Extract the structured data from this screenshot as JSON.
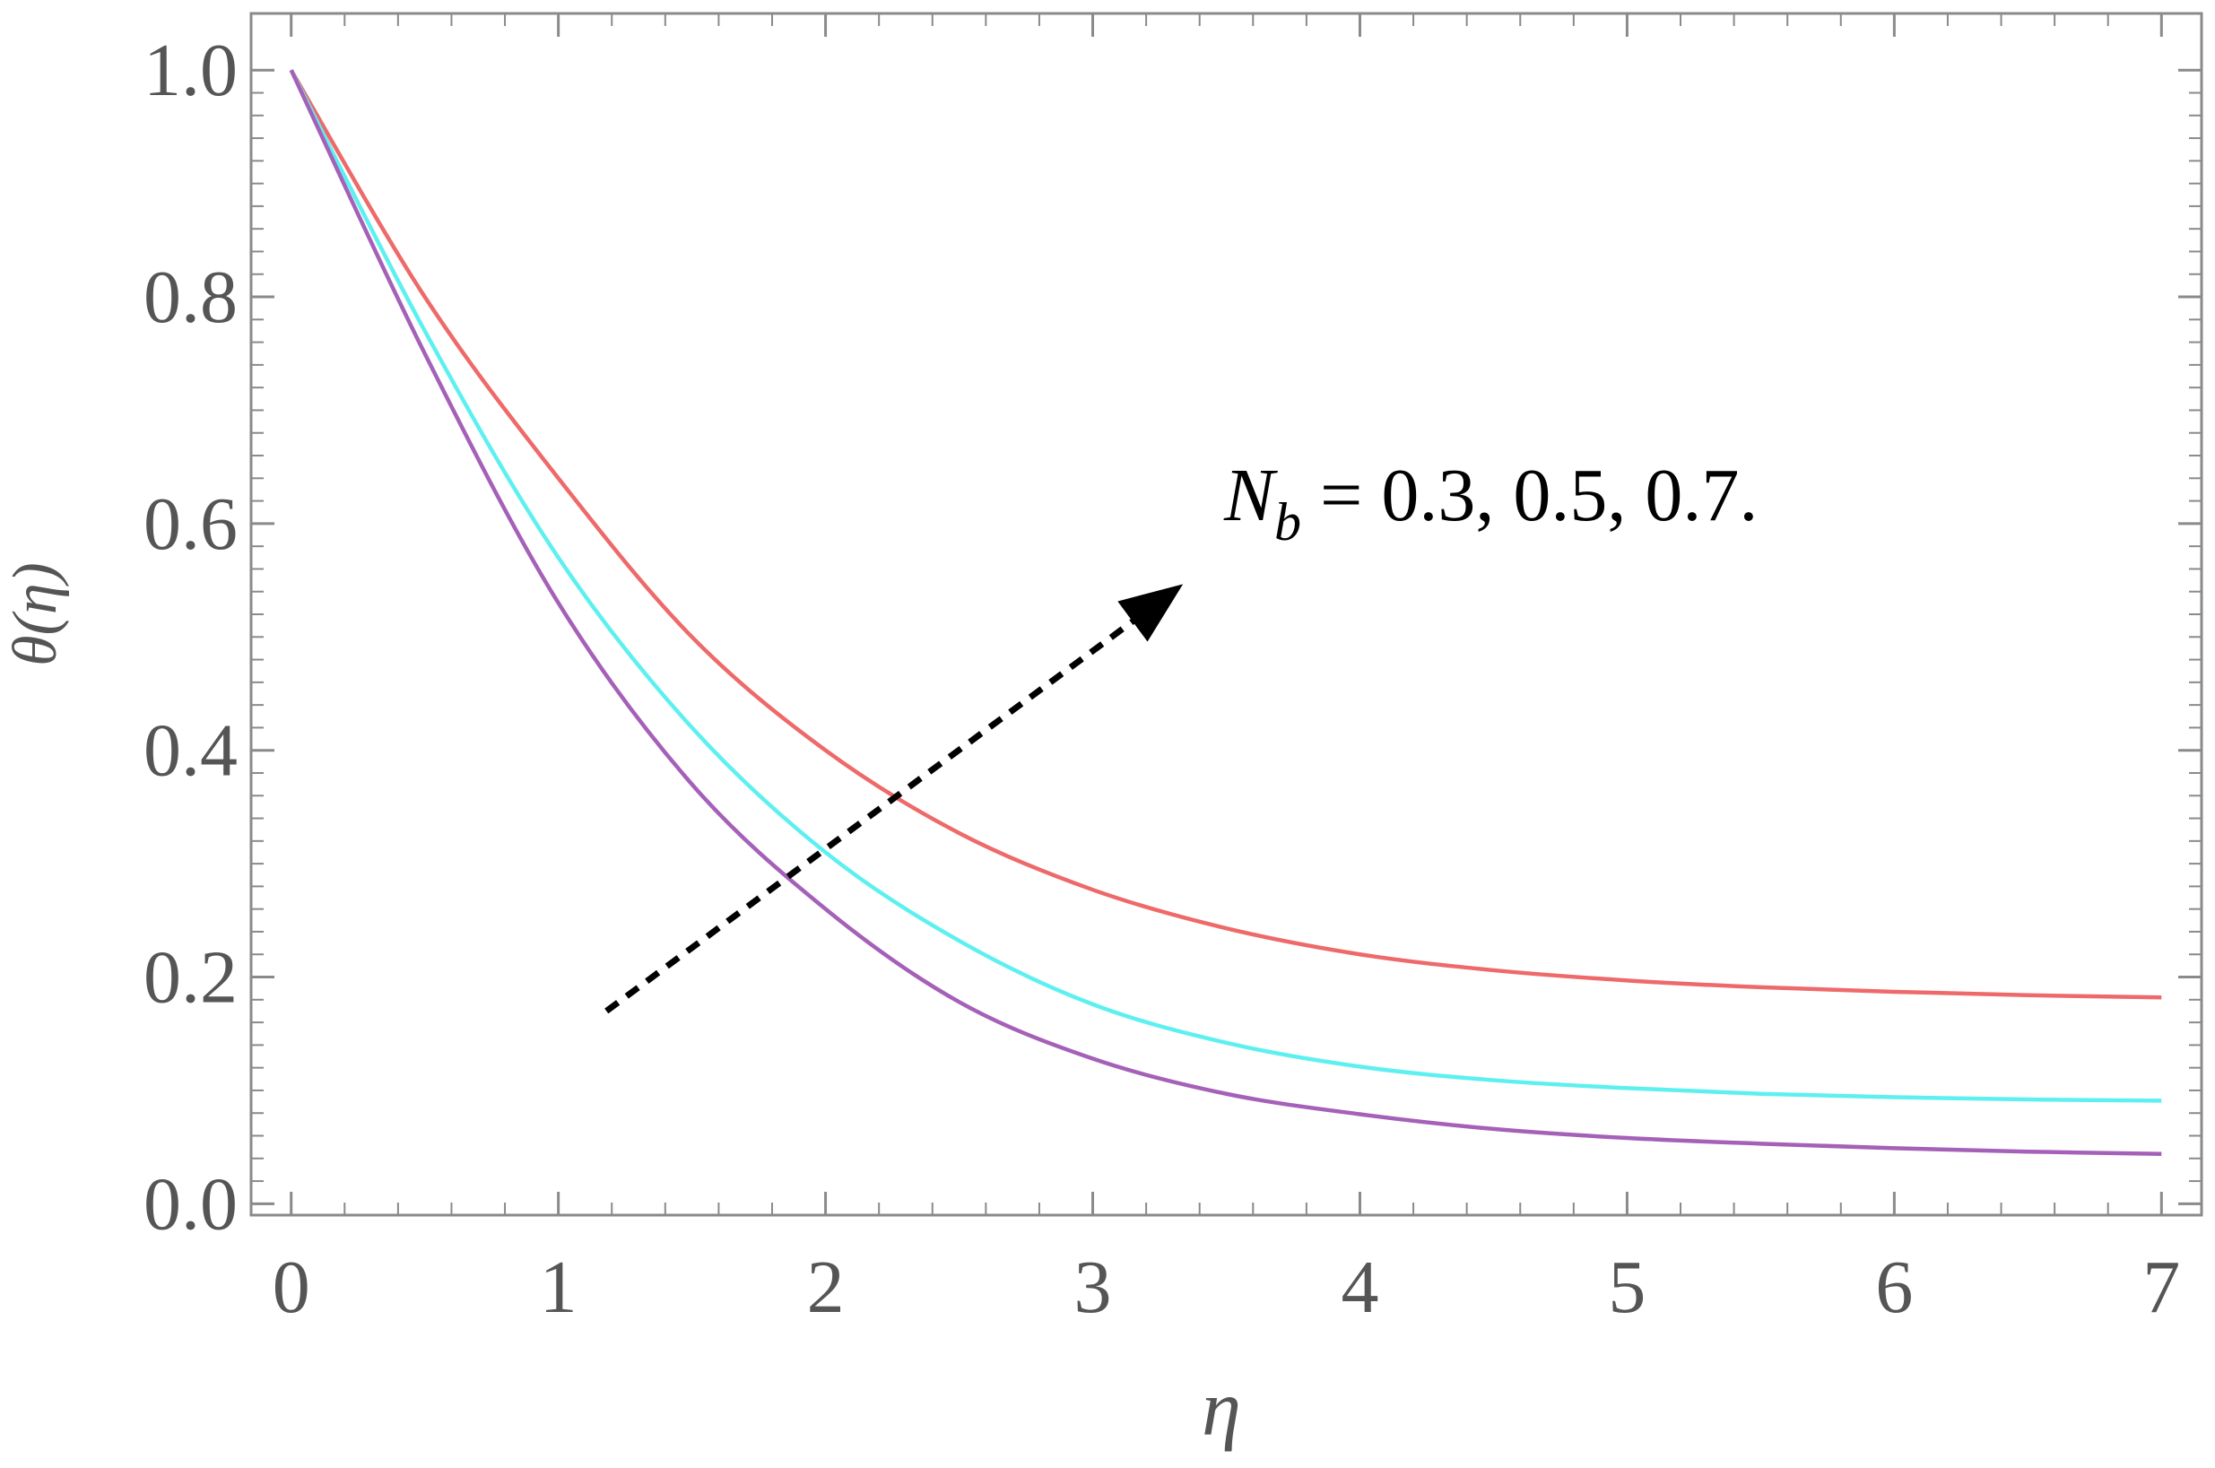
{
  "chart_data": {
    "type": "line",
    "title": "",
    "xlabel": "η",
    "ylabel": "θ(η)",
    "xlim": [
      -0.15,
      7.15
    ],
    "ylim": [
      -0.01,
      1.05
    ],
    "x_ticks": [
      0,
      1,
      2,
      3,
      4,
      5,
      6,
      7
    ],
    "x_tick_labels": [
      "0",
      "1",
      "2",
      "3",
      "4",
      "5",
      "6",
      "7"
    ],
    "y_ticks": [
      0.0,
      0.2,
      0.4,
      0.6,
      0.8,
      1.0
    ],
    "y_tick_labels": [
      "0.0",
      "0.2",
      "0.4",
      "0.6",
      "0.8",
      "1.0"
    ],
    "grid": false,
    "frame": true,
    "series": [
      {
        "color": "#ee6a6a",
        "x": [
          0,
          0.5,
          1,
          1.5,
          2,
          2.5,
          3,
          3.5,
          4,
          4.5,
          5,
          5.5,
          6,
          6.5,
          7
        ],
        "y": [
          1.0,
          0.8,
          0.64,
          0.5,
          0.4,
          0.327,
          0.277,
          0.243,
          0.22,
          0.206,
          0.197,
          0.191,
          0.187,
          0.184,
          0.182
        ]
      },
      {
        "color": "#5ef0f0",
        "x": [
          0,
          0.5,
          1,
          1.5,
          2,
          2.5,
          3,
          3.5,
          4,
          4.5,
          5,
          5.5,
          6,
          6.5,
          7
        ],
        "y": [
          1.0,
          0.77,
          0.57,
          0.42,
          0.31,
          0.232,
          0.176,
          0.142,
          0.121,
          0.109,
          0.102,
          0.097,
          0.094,
          0.092,
          0.091
        ]
      },
      {
        "color": "#a560b8",
        "x": [
          0,
          0.5,
          1,
          1.5,
          2,
          2.5,
          3,
          3.5,
          4,
          4.5,
          5,
          5.5,
          6,
          6.5,
          7
        ],
        "y": [
          1.0,
          0.75,
          0.53,
          0.37,
          0.26,
          0.178,
          0.128,
          0.097,
          0.079,
          0.066,
          0.058,
          0.053,
          0.049,
          0.046,
          0.044
        ]
      }
    ],
    "annotations": [
      {
        "text_main": "N",
        "text_sub": "b",
        "text_rest": " = 0.3, 0.5, 0.7."
      }
    ],
    "arrow": {
      "from": [
        1.18,
        0.17
      ],
      "to": [
        3.3,
        0.54
      ],
      "style": "dashed"
    }
  }
}
